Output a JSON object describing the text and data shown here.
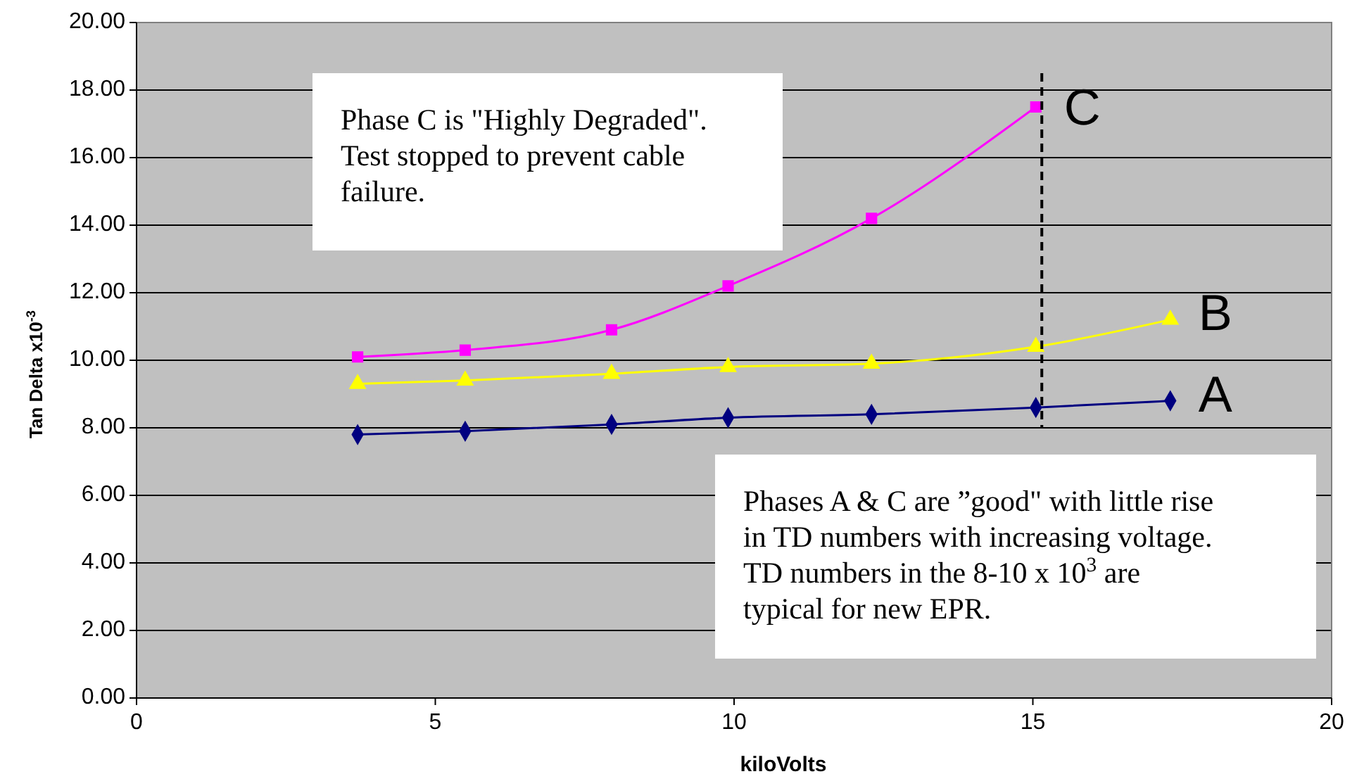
{
  "chart_data": {
    "type": "line",
    "xlabel": "kiloVolts",
    "ylabel": "Tan Delta  x10$^{-3}$",
    "xlim": [
      0,
      20
    ],
    "xticks": [
      0,
      5,
      10,
      15,
      20
    ],
    "ylim": [
      0,
      20
    ],
    "yticks": [
      {
        "value": 0,
        "label": "0.00"
      },
      {
        "value": 2,
        "label": "2.00"
      },
      {
        "value": 4,
        "label": "4.00"
      },
      {
        "value": 6,
        "label": "6.00"
      },
      {
        "value": 8,
        "label": "8.00"
      },
      {
        "value": 10,
        "label": "10.00"
      },
      {
        "value": 12,
        "label": "12.00"
      },
      {
        "value": 14,
        "label": "14.00"
      },
      {
        "value": 16,
        "label": "16.00"
      },
      {
        "value": 18,
        "label": "18.00"
      },
      {
        "value": 20,
        "label": "20.00"
      }
    ],
    "grid": "y",
    "series": [
      {
        "name": "A",
        "color": "#000080",
        "marker": "diamond",
        "x": [
          3.7,
          5.5,
          7.95,
          9.9,
          12.3,
          15.05,
          17.3
        ],
        "values": [
          7.8,
          7.9,
          8.1,
          8.3,
          8.4,
          8.6,
          8.8
        ]
      },
      {
        "name": "B",
        "color": "#ffff00",
        "marker": "triangle",
        "x": [
          3.7,
          5.5,
          7.95,
          9.9,
          12.3,
          15.05,
          17.3
        ],
        "values": [
          9.3,
          9.4,
          9.6,
          9.8,
          9.9,
          10.4,
          11.2
        ]
      },
      {
        "name": "C",
        "color": "#ff00ff",
        "marker": "square",
        "x": [
          3.7,
          5.5,
          7.95,
          9.9,
          12.3,
          15.05
        ],
        "values": [
          10.1,
          10.3,
          10.9,
          12.2,
          14.2,
          17.5
        ]
      }
    ],
    "ref_lines": [
      {
        "axis": "x",
        "value": 15.15,
        "color": "#000000",
        "line_style": "dashed"
      }
    ],
    "annotations": [
      "Phase C is \"Highly Degraded\". Test stopped to prevent cable failure.",
      "Phases A & C are ”good\" with little rise in TD numbers with increasing voltage.  TD numbers in the 8-10 x 10$^{3}$ are typical for new EPR."
    ]
  }
}
